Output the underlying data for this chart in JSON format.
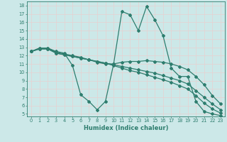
{
  "xlabel": "Humidex (Indice chaleur)",
  "bg_color": "#cce8e8",
  "grid_color": "#d4e8e8",
  "line_color": "#2e7d6e",
  "xlim": [
    -0.5,
    23.5
  ],
  "ylim": [
    4.7,
    18.5
  ],
  "xticks": [
    0,
    1,
    2,
    3,
    4,
    5,
    6,
    7,
    8,
    9,
    10,
    11,
    12,
    13,
    14,
    15,
    16,
    17,
    18,
    19,
    20,
    21,
    22,
    23
  ],
  "yticks": [
    5,
    6,
    7,
    8,
    9,
    10,
    11,
    12,
    13,
    14,
    15,
    16,
    17,
    18
  ],
  "series": [
    [
      12.5,
      12.9,
      12.9,
      12.5,
      12.3,
      10.8,
      7.3,
      6.5,
      5.5,
      6.5,
      11.0,
      17.3,
      16.9,
      15.0,
      17.9,
      16.3,
      14.4,
      10.5,
      9.5,
      9.5,
      6.5,
      5.3,
      5.0,
      4.8
    ],
    [
      12.5,
      12.9,
      12.9,
      12.4,
      12.2,
      12.0,
      11.8,
      11.5,
      11.2,
      11.0,
      11.0,
      11.2,
      11.3,
      11.3,
      11.4,
      11.3,
      11.2,
      11.0,
      10.7,
      10.3,
      9.5,
      8.5,
      7.2,
      6.2
    ],
    [
      12.5,
      12.8,
      12.8,
      12.3,
      12.1,
      11.9,
      11.7,
      11.5,
      11.3,
      11.1,
      10.9,
      10.7,
      10.5,
      10.3,
      10.1,
      9.9,
      9.6,
      9.3,
      9.0,
      8.6,
      7.8,
      7.0,
      6.2,
      5.5
    ],
    [
      12.5,
      12.8,
      12.8,
      12.3,
      12.1,
      11.9,
      11.7,
      11.5,
      11.3,
      11.1,
      10.8,
      10.5,
      10.2,
      10.0,
      9.7,
      9.4,
      9.1,
      8.8,
      8.4,
      8.0,
      7.2,
      6.3,
      5.6,
      5.1
    ]
  ]
}
